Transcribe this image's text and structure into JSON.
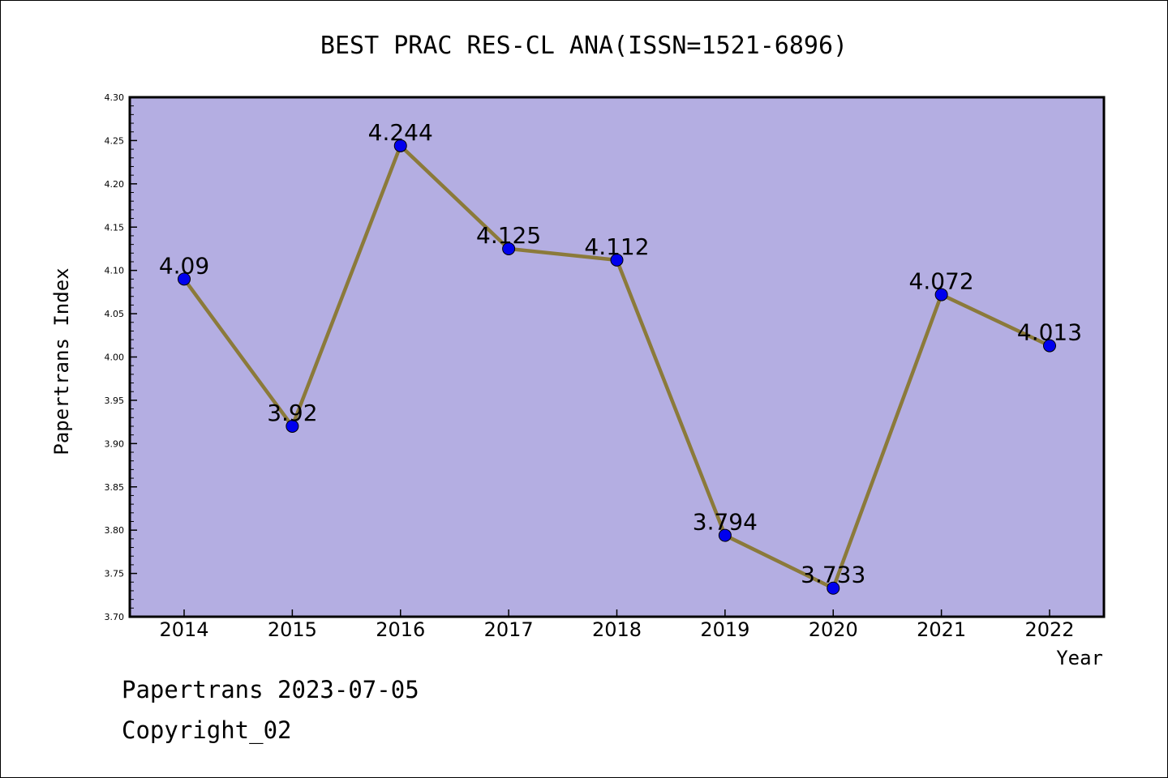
{
  "chart_data": {
    "type": "line",
    "title": "BEST PRAC RES-CL ANA(ISSN=1521-6896)",
    "xlabel": "Year",
    "ylabel": "Papertrans Index",
    "ylim": [
      3.7,
      4.3
    ],
    "yticks": [
      "3.70",
      "3.75",
      "3.80",
      "3.85",
      "3.90",
      "3.95",
      "4.00",
      "4.05",
      "4.10",
      "4.15",
      "4.20",
      "4.25",
      "4.30"
    ],
    "categories": [
      "2014",
      "2015",
      "2016",
      "2017",
      "2018",
      "2019",
      "2020",
      "2021",
      "2022"
    ],
    "values": [
      4.09,
      3.92,
      4.244,
      4.125,
      4.112,
      3.794,
      3.733,
      4.072,
      4.013
    ],
    "data_labels": [
      "4.09",
      "3.92",
      "4.244",
      "4.125",
      "4.112",
      "3.794",
      "3.733",
      "4.072",
      "4.013"
    ],
    "grid": false,
    "colors": {
      "plot_bg": "#b4aee2",
      "line": "#8b7a3a",
      "marker": "#0000ee"
    }
  },
  "footer": {
    "line1": "Papertrans 2023-07-05",
    "line2": "Copyright_02"
  }
}
